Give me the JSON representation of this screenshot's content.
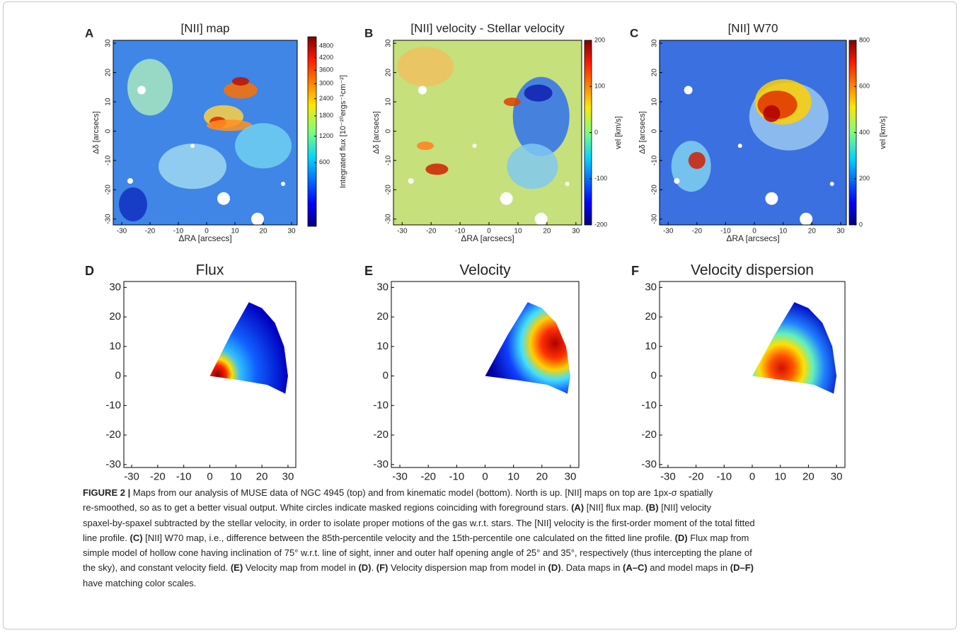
{
  "panels": [
    {
      "letter": "A",
      "title": "[NII] map",
      "xlabel": "ΔRA [arcsecs]",
      "ylabel": "Δδ [arcsecs]",
      "xlim": [
        -33,
        32
      ],
      "ylim": [
        -32,
        31
      ],
      "xticks": [
        -30,
        -20,
        -10,
        0,
        10,
        20,
        30
      ],
      "yticks": [
        -30,
        -20,
        -10,
        0,
        10,
        20,
        30
      ],
      "colorbar": {
        "label": "Integrated flux [10⁻²⁰ergs⁻¹cm⁻²]",
        "scale": "sqrt",
        "lim": [
          0,
          5300
        ],
        "ticks": [
          600,
          1200,
          1800,
          2400,
          3000,
          3600,
          4200,
          4800
        ]
      }
    },
    {
      "letter": "B",
      "title": "[NII] velocity - Stellar velocity",
      "xlabel": "ΔRA [arcsecs]",
      "ylabel": "Δδ [arcsecs]",
      "xlim": [
        -33,
        32
      ],
      "ylim": [
        -32,
        31
      ],
      "xticks": [
        -30,
        -20,
        -10,
        0,
        10,
        20,
        30
      ],
      "yticks": [
        -30,
        -20,
        -10,
        0,
        10,
        20,
        30
      ],
      "colorbar": {
        "label": "vel [km/s]",
        "scale": "linear",
        "lim": [
          -200,
          200
        ],
        "ticks": [
          -200,
          -100,
          0,
          100,
          200
        ]
      }
    },
    {
      "letter": "C",
      "title": "[NII] W70",
      "xlabel": "ΔRA [arcsecs]",
      "ylabel": "Δδ [arcsecs]",
      "xlim": [
        -33,
        32
      ],
      "ylim": [
        -32,
        31
      ],
      "xticks": [
        -30,
        -20,
        -10,
        0,
        10,
        20,
        30
      ],
      "yticks": [
        -30,
        -20,
        -10,
        0,
        10,
        20,
        30
      ],
      "colorbar": {
        "label": "vel [km/s]",
        "scale": "linear",
        "lim": [
          0,
          800
        ],
        "ticks": [
          0,
          200,
          400,
          600,
          800
        ]
      }
    },
    {
      "letter": "D",
      "title": "Flux",
      "xlim": [
        -33,
        33
      ],
      "ylim": [
        -31,
        32
      ],
      "xticks": [
        -30,
        -20,
        -10,
        0,
        10,
        20,
        30
      ],
      "yticks": [
        -30,
        -20,
        -10,
        0,
        10,
        20,
        30
      ]
    },
    {
      "letter": "E",
      "title": "Velocity",
      "xlim": [
        -33,
        33
      ],
      "ylim": [
        -31,
        32
      ],
      "xticks": [
        -30,
        -20,
        -10,
        0,
        10,
        20,
        30
      ],
      "yticks": [
        -30,
        -20,
        -10,
        0,
        10,
        20,
        30
      ]
    },
    {
      "letter": "F",
      "title": "Velocity dispersion",
      "xlim": [
        -33,
        33
      ],
      "ylim": [
        -31,
        32
      ],
      "xticks": [
        -30,
        -20,
        -10,
        0,
        10,
        20,
        30
      ],
      "yticks": [
        -30,
        -20,
        -10,
        0,
        10,
        20,
        30
      ]
    }
  ],
  "caption": {
    "lines": [
      [
        {
          "text": "FIGURE 2 |",
          "bold": true
        },
        {
          "text": " Maps from our analysis of MUSE data of NGC 4945 (top) and from kinematic model (bottom). North is up. [NII] maps on top are 1px-σ spatially"
        }
      ],
      [
        {
          "text": "re-smoothed, so as to get a better visual output. White circles indicate masked regions coinciding with foreground stars. "
        },
        {
          "text": "(A)",
          "bold": true
        },
        {
          "text": " [NII] flux map. "
        },
        {
          "text": "(B)",
          "bold": true
        },
        {
          "text": " [NII] velocity"
        }
      ],
      [
        {
          "text": "spaxel-by-spaxel subtracted by the stellar velocity, in order to isolate proper motions of the gas w.r.t. stars.  The [NII] velocity is the first-order moment of the total fitted"
        }
      ],
      [
        {
          "text": "line profile. "
        },
        {
          "text": "(C)",
          "bold": true
        },
        {
          "text": " [NII] W70 map, i.e., difference between the 85th-percentile velocity and the 15th-percentile one calculated on the fitted line profile. "
        },
        {
          "text": "(D)",
          "bold": true
        },
        {
          "text": " Flux map from"
        }
      ],
      [
        {
          "text": "simple model of hollow cone having inclination of 75° w.r.t. line of sight, inner and outer half opening angle of 25° and 35°, respectively (thus intercepting the plane of"
        }
      ],
      [
        {
          "text": "the sky), and constant velocity field. "
        },
        {
          "text": "(E)",
          "bold": true
        },
        {
          "text": " Velocity map from model in "
        },
        {
          "text": "(D)",
          "bold": true
        },
        {
          "text": ". "
        },
        {
          "text": "(F)",
          "bold": true
        },
        {
          "text": " Velocity dispersion map from model in "
        },
        {
          "text": "(D)",
          "bold": true
        },
        {
          "text": ". Data maps in "
        },
        {
          "text": "(A–C)",
          "bold": true
        },
        {
          "text": " and model maps in "
        },
        {
          "text": "(D–F)",
          "bold": true
        }
      ],
      [
        {
          "text": "have matching color scales."
        }
      ]
    ]
  }
}
